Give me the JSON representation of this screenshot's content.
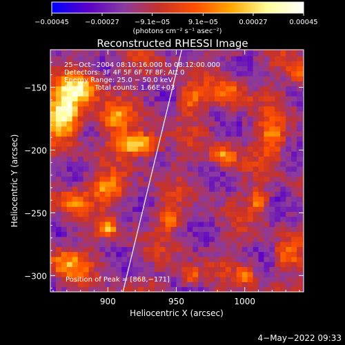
{
  "chart_data": {
    "type": "heatmap",
    "title": "Reconstructed RHESSI Image",
    "xlabel": "Heliocentric X (arcsec)",
    "ylabel": "Heliocentric Y (arcsec)",
    "xlim": [
      858,
      1043
    ],
    "ylim": [
      -313,
      -120
    ],
    "x_ticks": [
      900,
      950,
      1000
    ],
    "x_tick_labels": [
      "900",
      "950",
      "1000"
    ],
    "y_ticks": [
      -150,
      -200,
      -250,
      -300
    ],
    "y_tick_labels": [
      "−150",
      "−200",
      "−250",
      "−300"
    ],
    "colorbar": {
      "min": -0.00045,
      "max": 0.00045,
      "ticks": [
        -0.00045,
        -0.00027,
        -9.1e-05,
        9.1e-05,
        0.00027,
        0.00045
      ],
      "tick_labels": [
        "−0.00045",
        "−0.00027",
        "−9.1e−05",
        "9.1e−05",
        "0.00027",
        "0.00045"
      ],
      "unit_label": "(photons cm⁻² s⁻¹ asec⁻²)",
      "colors": [
        "#0000ff",
        "#5a00c8",
        "#8a3aa0",
        "#c83228",
        "#ff5000",
        "#ffa800",
        "#ffff99",
        "#ffffff"
      ]
    },
    "annotations": [
      "25−Oct−2004 08:10:16.000 to 08:12:00.000",
      "Detectors: 3F 4F 5F 6F 7F 8F; Att 0",
      "Energy Range: 25.0 − 50.0 keV",
      "Clean     Total counts: 1.66E+03"
    ],
    "peak_label": "Position of Peak = [868,−171]",
    "peak_position": [
      868,
      -171
    ],
    "limb_line": {
      "x": [
        911,
        954
      ],
      "y": [
        -313,
        -120
      ]
    },
    "peaks": [
      {
        "x": 868,
        "y": -171,
        "amp": 1.0,
        "sx": 9,
        "sy": 12
      },
      {
        "x": 880,
        "y": -150,
        "amp": 0.7,
        "sx": 10,
        "sy": 9
      },
      {
        "x": 922,
        "y": -195,
        "amp": 0.95,
        "sx": 10,
        "sy": 6
      },
      {
        "x": 905,
        "y": -175,
        "amp": 0.55,
        "sx": 8,
        "sy": 8
      },
      {
        "x": 900,
        "y": -230,
        "amp": 0.6,
        "sx": 9,
        "sy": 7
      },
      {
        "x": 875,
        "y": -240,
        "amp": 0.5,
        "sx": 8,
        "sy": 8
      },
      {
        "x": 870,
        "y": -290,
        "amp": 0.55,
        "sx": 10,
        "sy": 8
      },
      {
        "x": 900,
        "y": -262,
        "amp": 0.75,
        "sx": 4,
        "sy": 4
      },
      {
        "x": 945,
        "y": -255,
        "amp": 0.5,
        "sx": 6,
        "sy": 6
      },
      {
        "x": 985,
        "y": -205,
        "amp": 0.6,
        "sx": 6,
        "sy": 6
      },
      {
        "x": 990,
        "y": -155,
        "amp": 0.45,
        "sx": 9,
        "sy": 8
      },
      {
        "x": 1020,
        "y": -190,
        "amp": 0.55,
        "sx": 7,
        "sy": 10
      },
      {
        "x": 1010,
        "y": -240,
        "amp": 0.5,
        "sx": 5,
        "sy": 7
      },
      {
        "x": 1030,
        "y": -285,
        "amp": 0.45,
        "sx": 6,
        "sy": 8
      },
      {
        "x": 960,
        "y": -300,
        "amp": 0.5,
        "sx": 6,
        "sy": 5
      },
      {
        "x": 1000,
        "y": -300,
        "amp": 0.45,
        "sx": 5,
        "sy": 5
      },
      {
        "x": 960,
        "y": -160,
        "amp": 0.45,
        "sx": 6,
        "sy": 8
      },
      {
        "x": 1040,
        "y": -140,
        "amp": 0.45,
        "sx": 5,
        "sy": 6
      }
    ]
  },
  "footer": {
    "timestamp": "4−May−2022 09:33"
  }
}
